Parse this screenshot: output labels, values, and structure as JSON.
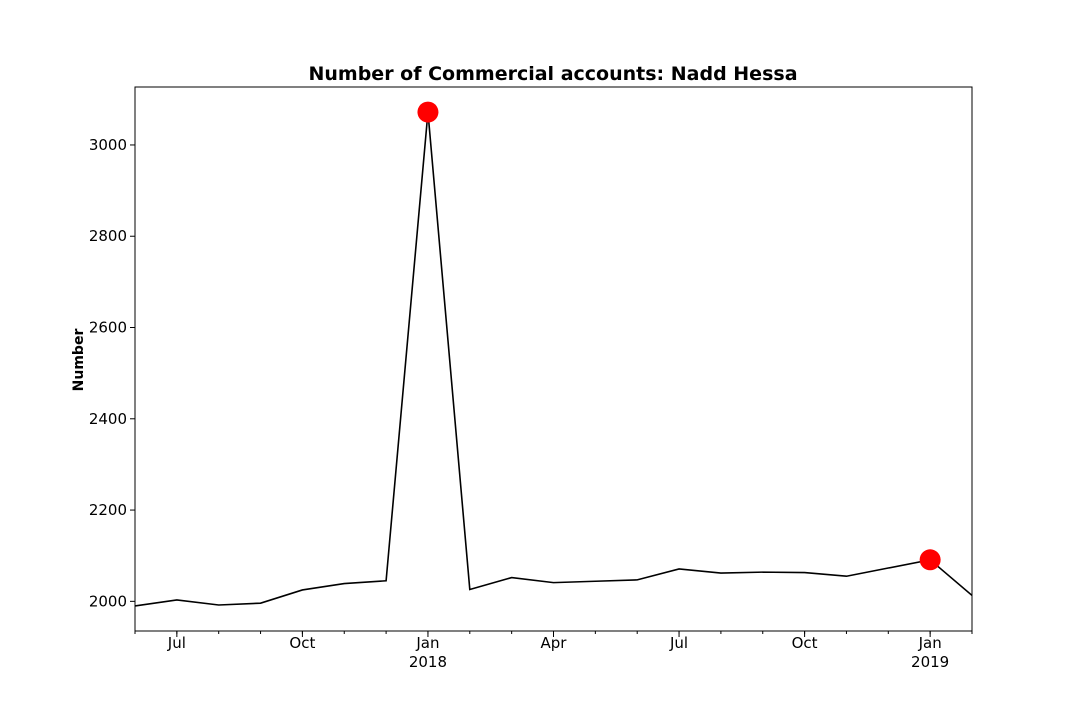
{
  "chart_data": {
    "type": "line",
    "title": "Number of Commercial accounts: Nadd Hessa",
    "xlabel": "",
    "ylabel": "Number",
    "x": [
      "2017-06",
      "2017-07",
      "2017-08",
      "2017-09",
      "2017-10",
      "2017-11",
      "2017-12",
      "2018-01",
      "2018-02",
      "2018-03",
      "2018-04",
      "2018-05",
      "2018-06",
      "2018-07",
      "2018-08",
      "2018-09",
      "2018-10",
      "2018-11",
      "2018-12",
      "2019-01",
      "2019-02"
    ],
    "series": [
      {
        "values": [
          1990,
          2003,
          1992,
          1996,
          2025,
          2039,
          2045,
          3072,
          2026,
          2052,
          2041,
          2044,
          2047,
          2071,
          2062,
          2064,
          2063,
          2055,
          2073,
          2091,
          2013
        ],
        "color": "#000000"
      }
    ],
    "highlights": [
      {
        "x": "2018-01",
        "value": 3072,
        "color": "#ff0000"
      },
      {
        "x": "2019-01",
        "value": 2091,
        "color": "#ff0000"
      }
    ],
    "x_tick_labels": [
      {
        "x": "2017-07",
        "label": "Jul",
        "sublabel": ""
      },
      {
        "x": "2017-10",
        "label": "Oct",
        "sublabel": ""
      },
      {
        "x": "2018-01",
        "label": "Jan",
        "sublabel": "2018"
      },
      {
        "x": "2018-04",
        "label": "Apr",
        "sublabel": ""
      },
      {
        "x": "2018-07",
        "label": "Jul",
        "sublabel": ""
      },
      {
        "x": "2018-10",
        "label": "Oct",
        "sublabel": ""
      },
      {
        "x": "2019-01",
        "label": "Jan",
        "sublabel": "2019"
      }
    ],
    "y_ticks": [
      2000,
      2200,
      2400,
      2600,
      2800,
      3000
    ],
    "ylim": [
      1935,
      3127
    ],
    "xlim": [
      "2017-06",
      "2019-02"
    ],
    "grid": false,
    "legend": "none"
  }
}
